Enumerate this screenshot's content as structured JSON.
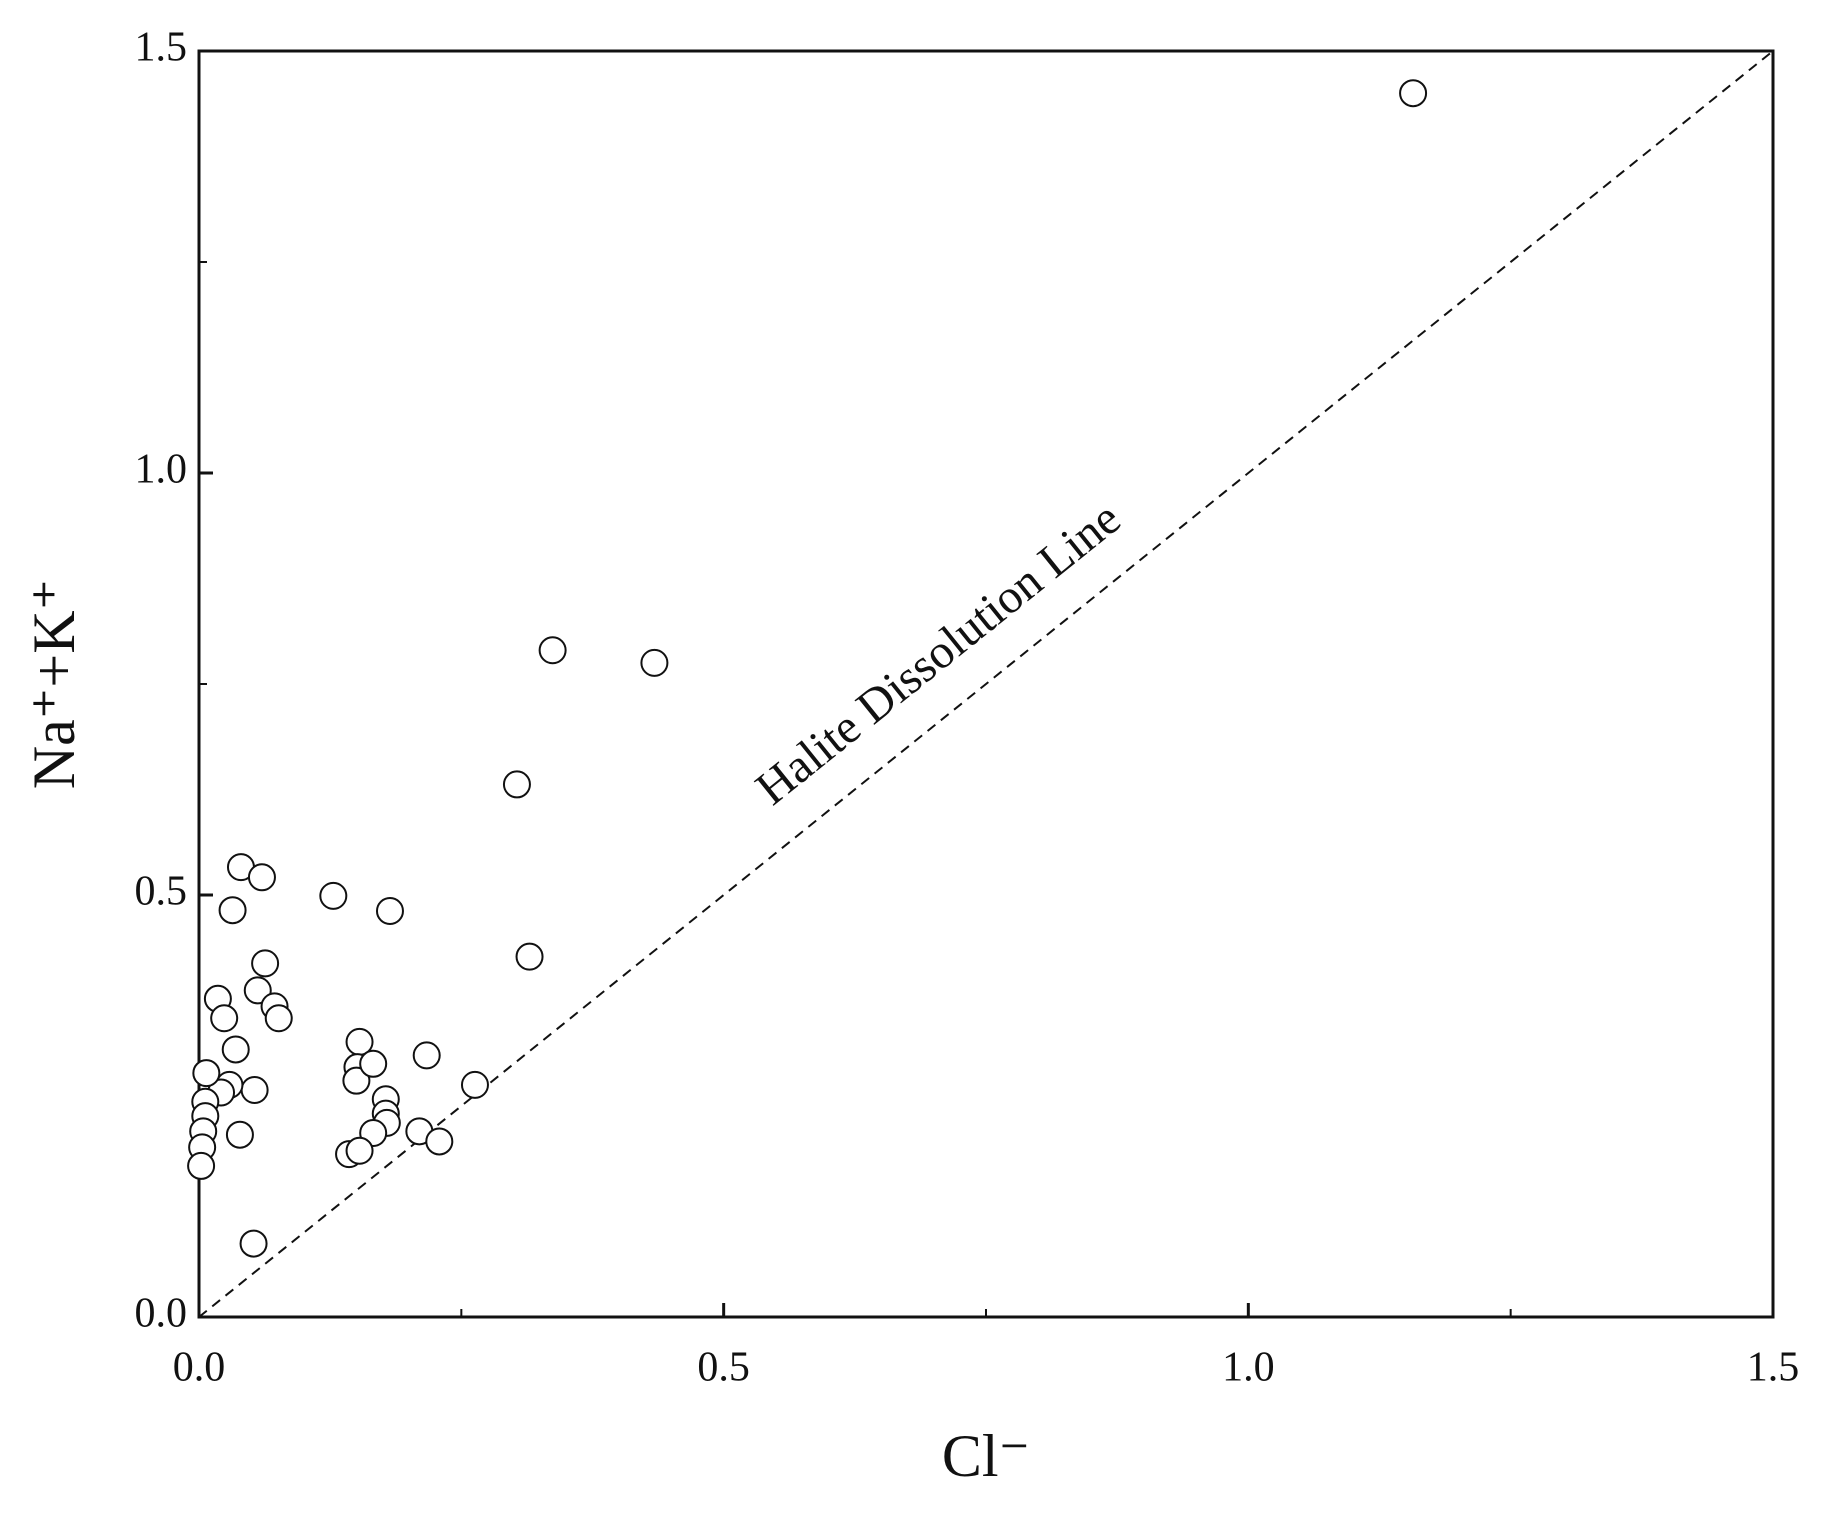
{
  "chart_data": {
    "type": "scatter",
    "x_label": "Cl⁻",
    "y_label": "Na⁺+K⁺",
    "annotation": "Halite Dissolution Line",
    "xlim": [
      0,
      1.5
    ],
    "ylim": [
      0,
      1.5
    ],
    "xticks": [
      {
        "value": 0,
        "label": "0.0"
      },
      {
        "value": 0.5,
        "label": "0.5"
      },
      {
        "value": 1,
        "label": "1.0"
      },
      {
        "value": 1.5,
        "label": "1.5"
      }
    ],
    "yticks": [
      {
        "value": 0,
        "label": "0.0"
      },
      {
        "value": 0.5,
        "label": "0.5"
      },
      {
        "value": 1,
        "label": "1.0"
      },
      {
        "value": 1.5,
        "label": "1.5"
      }
    ],
    "xminor_ticks": [
      0.25,
      0.75,
      1.25
    ],
    "yminor_ticks": [
      0.25,
      0.75,
      1.25
    ],
    "series": [
      {
        "color": "#ffffff",
        "x": [
          1.157,
          0.337,
          0.434,
          0.303,
          0.315,
          0.04,
          0.06,
          0.128,
          0.182,
          0.032,
          0.063,
          0.056,
          0.072,
          0.076,
          0.018,
          0.024,
          0.035,
          0.153,
          0.151,
          0.15,
          0.166,
          0.217,
          0.263,
          0.178,
          0.178,
          0.179,
          0.166,
          0.21,
          0.229,
          0.143,
          0.153,
          0.053,
          0.029,
          0.021,
          0.039,
          0.007,
          0.006,
          0.006,
          0.004,
          0.003,
          0.002,
          0.052
        ],
        "values": [
          1.45,
          0.79,
          0.775,
          0.631,
          0.427,
          0.533,
          0.521,
          0.499,
          0.481,
          0.482,
          0.419,
          0.387,
          0.368,
          0.354,
          0.377,
          0.354,
          0.317,
          0.326,
          0.296,
          0.28,
          0.3,
          0.31,
          0.275,
          0.258,
          0.241,
          0.23,
          0.218,
          0.22,
          0.208,
          0.193,
          0.197,
          0.269,
          0.275,
          0.266,
          0.216,
          0.289,
          0.255,
          0.238,
          0.22,
          0.201,
          0.179,
          0.087
        ]
      }
    ]
  }
}
